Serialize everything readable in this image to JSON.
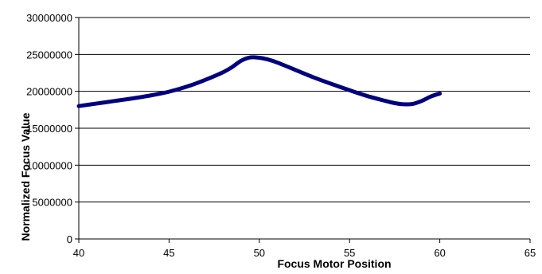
{
  "chart_data": {
    "type": "line",
    "title": "",
    "xlabel": "Focus Motor Position",
    "ylabel": "Normalized Focus Value",
    "xlim": [
      40,
      65
    ],
    "ylim": [
      0,
      30000000
    ],
    "x_ticks": [
      40,
      45,
      50,
      55,
      60,
      65
    ],
    "x_tick_labels": [
      "40",
      "45",
      "50",
      "55",
      "60",
      "65"
    ],
    "y_ticks": [
      0,
      5000000,
      10000000,
      15000000,
      20000000,
      25000000,
      30000000
    ],
    "y_tick_labels": [
      "0",
      "5000000",
      "10000000",
      "15000000",
      "20000000",
      "25000000",
      "30000000"
    ],
    "grid": "horizontal",
    "legend": "none",
    "series": [
      {
        "color": "#000080",
        "x": [
          40,
          41,
          42,
          43,
          44,
          45,
          46,
          47,
          48,
          48.5,
          49,
          49.5,
          50,
          50.5,
          51,
          52,
          53,
          54,
          55,
          56,
          57,
          57.5,
          58,
          58.5,
          59,
          59.5,
          60
        ],
        "y": [
          18000000,
          18350000,
          18700000,
          19050000,
          19450000,
          19950000,
          20650000,
          21550000,
          22600000,
          23300000,
          24150000,
          24600000,
          24550000,
          24300000,
          23900000,
          22900000,
          21900000,
          21000000,
          20150000,
          19350000,
          18700000,
          18400000,
          18250000,
          18300000,
          18700000,
          19300000,
          19700000
        ]
      }
    ]
  }
}
